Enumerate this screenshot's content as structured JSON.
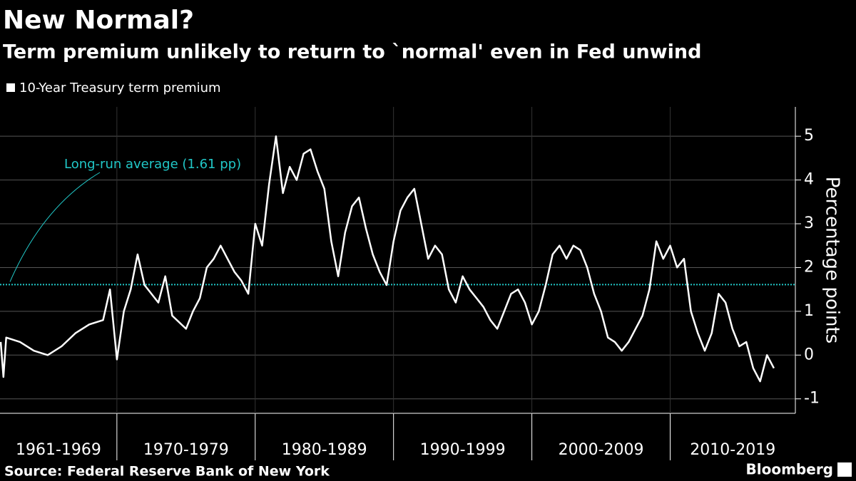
{
  "chart_data": {
    "type": "line",
    "title": "New Normal?",
    "subtitle": "Term premium unlikely to return to `normal' even in Fed unwind",
    "y_axis_label": "Percentage points",
    "source": "Source: Federal Reserve Bank of New York",
    "brand": "Bloomberg",
    "x_labels": [
      "1961-1969",
      "1970-1979",
      "1980-1989",
      "1990-1999",
      "2000-2009",
      "2010-2019"
    ],
    "x_separators": [
      1970,
      1980,
      1990,
      2000,
      2010
    ],
    "xlim": [
      1961.55,
      2019.05
    ],
    "ylim": [
      -1.33,
      5.67
    ],
    "yticks": [
      -1,
      0,
      1,
      2,
      3,
      4,
      5
    ],
    "grid": true,
    "reference_line": {
      "value": 1.61,
      "label": "Long-run average (1.61 pp)",
      "color": "#21c8c8"
    },
    "x": [
      1961.6,
      1961.8,
      1962,
      1963,
      1964,
      1965,
      1966,
      1967,
      1968,
      1969,
      1969.5,
      1970,
      1970.5,
      1971,
      1971.5,
      1972,
      1973,
      1973.5,
      1974,
      1975,
      1975.5,
      1976,
      1976.5,
      1977,
      1977.5,
      1978,
      1978.5,
      1979,
      1979.5,
      1980,
      1980.5,
      1981,
      1981.5,
      1982,
      1982.5,
      1983,
      1983.5,
      1984,
      1984.5,
      1985,
      1985.5,
      1986,
      1986.5,
      1987,
      1987.5,
      1988,
      1988.5,
      1989,
      1989.5,
      1990,
      1990.5,
      1991,
      1991.5,
      1992,
      1992.5,
      1993,
      1993.5,
      1994,
      1994.5,
      1995,
      1995.5,
      1996,
      1996.5,
      1997,
      1997.5,
      1998,
      1998.5,
      1999,
      1999.5,
      2000,
      2000.5,
      2001,
      2001.5,
      2002,
      2002.5,
      2003,
      2003.5,
      2004,
      2004.5,
      2005,
      2005.5,
      2006,
      2006.5,
      2007,
      2007.5,
      2008,
      2008.5,
      2009,
      2009.5,
      2010,
      2010.5,
      2011,
      2011.5,
      2012,
      2012.5,
      2013,
      2013.5,
      2014,
      2014.5,
      2015,
      2015.5,
      2016,
      2016.5,
      2017,
      2017.5
    ],
    "series": [
      {
        "name": "10-Year Treasury term premium",
        "color": "#ffffff",
        "values": [
          0.3,
          -0.5,
          0.4,
          0.3,
          0.1,
          0.0,
          0.2,
          0.5,
          0.7,
          0.8,
          1.5,
          -0.1,
          1.0,
          1.5,
          2.3,
          1.6,
          1.2,
          1.8,
          0.9,
          0.6,
          1.0,
          1.3,
          2.0,
          2.2,
          2.5,
          2.2,
          1.9,
          1.7,
          1.4,
          3.0,
          2.5,
          3.9,
          5.0,
          3.7,
          4.3,
          4.0,
          4.6,
          4.7,
          4.2,
          3.8,
          2.6,
          1.8,
          2.8,
          3.4,
          3.6,
          2.9,
          2.3,
          1.9,
          1.6,
          2.6,
          3.3,
          3.6,
          3.8,
          3.0,
          2.2,
          2.5,
          2.3,
          1.5,
          1.2,
          1.8,
          1.5,
          1.3,
          1.1,
          0.8,
          0.6,
          1.0,
          1.4,
          1.5,
          1.2,
          0.7,
          1.0,
          1.6,
          2.3,
          2.5,
          2.2,
          2.5,
          2.4,
          2.0,
          1.4,
          1.0,
          0.4,
          0.3,
          0.1,
          0.3,
          0.6,
          0.9,
          1.5,
          2.6,
          2.2,
          2.5,
          2.0,
          2.2,
          1.0,
          0.5,
          0.1,
          0.5,
          1.4,
          1.2,
          0.6,
          0.2,
          0.3,
          -0.3,
          -0.6,
          0.0,
          -0.3
        ]
      }
    ]
  }
}
